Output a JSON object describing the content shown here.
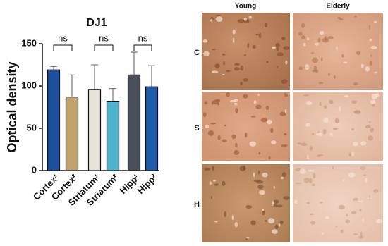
{
  "chart_data": {
    "type": "bar",
    "title": "DJ1",
    "y_label": "Optical density",
    "categories": [
      "Cortex¹",
      "Cortex²",
      "Striatum¹",
      "Striatum²",
      "Hipp¹",
      "Hipp²"
    ],
    "values": [
      119,
      87,
      96,
      82,
      113,
      99
    ],
    "errors": [
      4,
      26,
      29,
      15,
      27,
      25
    ],
    "colors": [
      "#1d4f9c",
      "#c0a26c",
      "#e7e3d8",
      "#4db3cf",
      "#4a4f59",
      "#1e5aa8"
    ],
    "ylim": [
      0,
      150
    ],
    "yticks": [
      0,
      50,
      100,
      150
    ],
    "annotations": [
      "ns",
      "ns",
      "ns"
    ]
  },
  "panels": {
    "columns": [
      "Young",
      "Elderly"
    ],
    "rows": [
      "C",
      "S",
      "H"
    ]
  }
}
